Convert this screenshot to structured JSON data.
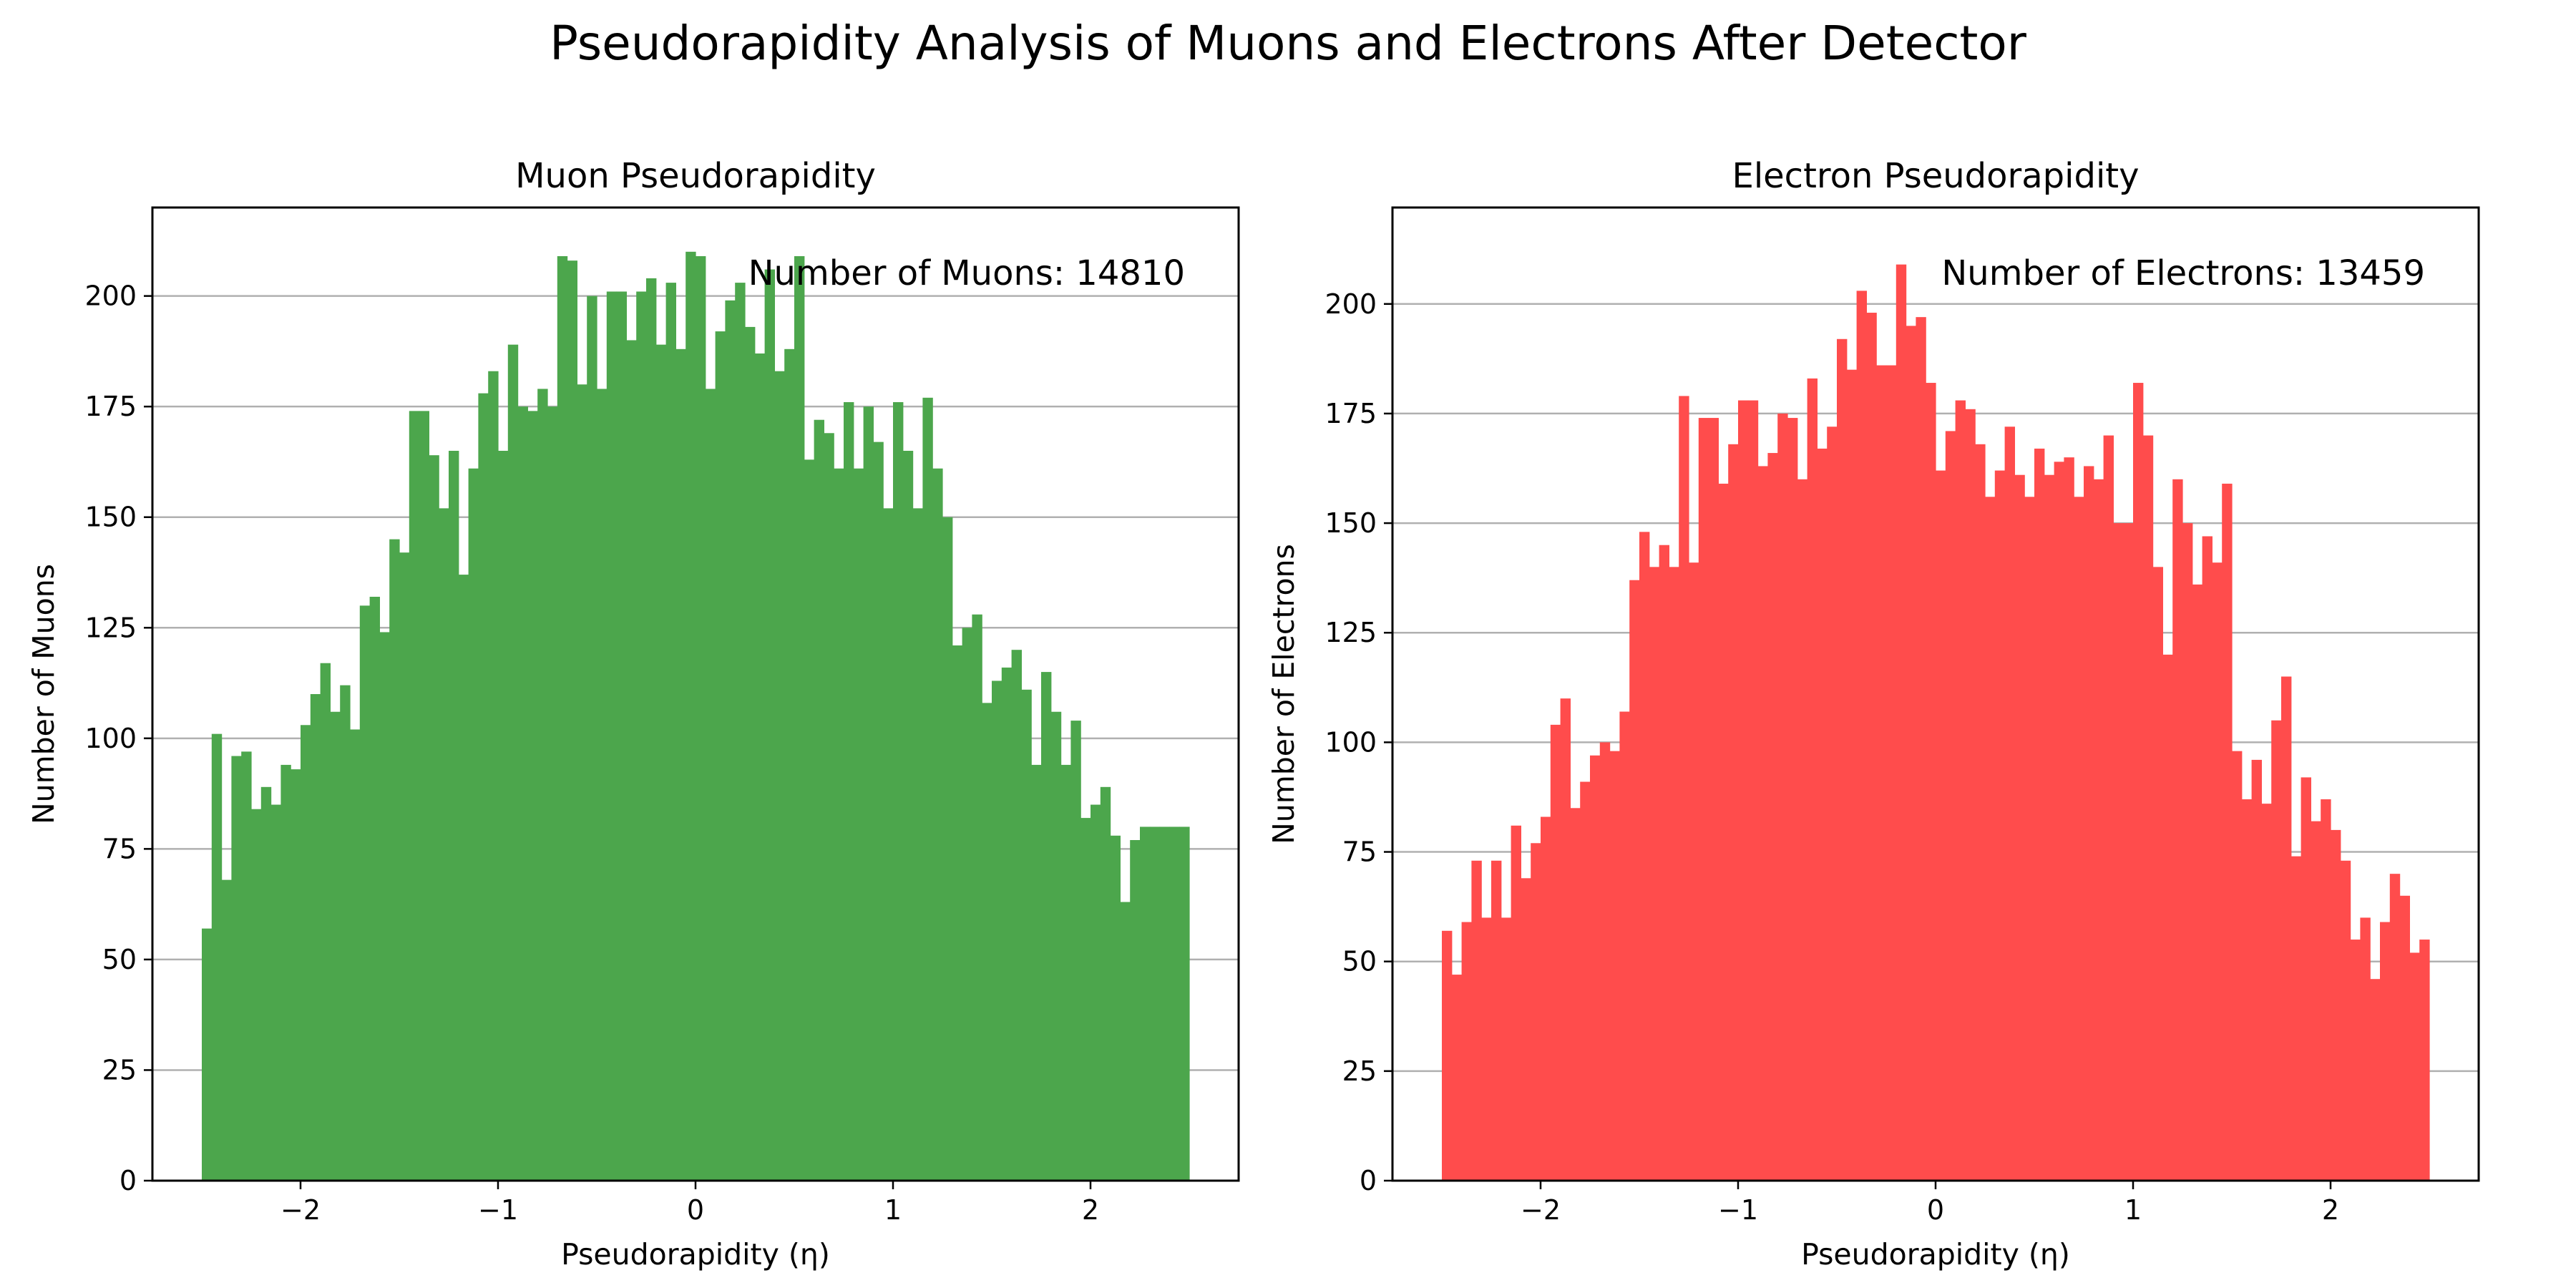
{
  "figure": {
    "suptitle": "Pseudorapidity Analysis of Muons and Electrons After Detector"
  },
  "chart_data": [
    {
      "type": "bar",
      "title": "Muon Pseudorapidity",
      "xlabel": "Pseudorapidity (η)",
      "ylabel": "Number of Muons",
      "annotation": "Number of Muons: 14810",
      "color": "#4ca64c",
      "xlim": [
        -2.75,
        2.75
      ],
      "ylim": [
        0,
        220
      ],
      "xticks": [
        -2,
        -1,
        0,
        1,
        2
      ],
      "xtick_labels": [
        "−2",
        "−1",
        "0",
        "1",
        "2"
      ],
      "yticks": [
        0,
        25,
        50,
        75,
        100,
        125,
        150,
        175,
        200
      ],
      "yticks_labels": [
        "0",
        "25",
        "50",
        "75",
        "100",
        "125",
        "150",
        "175",
        "200"
      ],
      "grid": "y",
      "bin_range": [
        -2.5,
        2.5
      ],
      "bins": 100,
      "values": [
        57,
        101,
        68,
        96,
        97,
        84,
        89,
        85,
        94,
        93,
        103,
        110,
        117,
        106,
        112,
        102,
        130,
        132,
        124,
        145,
        142,
        174,
        174,
        164,
        152,
        165,
        137,
        161,
        178,
        183,
        165,
        189,
        175,
        174,
        179,
        175,
        209,
        208,
        180,
        200,
        179,
        201,
        201,
        190,
        201,
        204,
        189,
        203,
        188,
        210,
        209,
        179,
        192,
        199,
        203,
        193,
        187,
        206,
        183,
        188,
        209,
        163,
        172,
        169,
        161,
        176,
        161,
        175,
        167,
        152,
        176,
        165,
        152,
        177,
        161,
        150,
        121,
        125,
        128,
        108,
        113,
        116,
        120,
        111,
        94,
        115,
        106,
        94,
        104,
        82,
        85,
        89,
        78,
        63,
        77,
        80,
        80,
        80,
        80,
        80
      ]
    },
    {
      "type": "bar",
      "title": "Electron Pseudorapidity",
      "xlabel": "Pseudorapidity (η)",
      "ylabel": "Number of Electrons",
      "annotation": "Number of Electrons: 13459",
      "color": "#ff4c4c",
      "xlim": [
        -2.75,
        2.75
      ],
      "ylim": [
        0,
        222
      ],
      "xticks": [
        -2,
        -1,
        0,
        1,
        2
      ],
      "xtick_labels": [
        "−2",
        "−1",
        "0",
        "1",
        "2"
      ],
      "yticks": [
        0,
        25,
        50,
        75,
        100,
        125,
        150,
        175,
        200
      ],
      "yticks_labels": [
        "0",
        "25",
        "50",
        "75",
        "100",
        "125",
        "150",
        "175",
        "200"
      ],
      "grid": "y",
      "bin_range": [
        -2.5,
        2.5
      ],
      "bins": 100,
      "values": [
        57,
        47,
        59,
        73,
        60,
        73,
        60,
        81,
        69,
        77,
        83,
        104,
        110,
        85,
        91,
        97,
        100,
        98,
        107,
        137,
        148,
        140,
        145,
        140,
        179,
        141,
        174,
        174,
        159,
        168,
        178,
        178,
        163,
        166,
        175,
        174,
        160,
        183,
        167,
        172,
        192,
        185,
        203,
        198,
        186,
        186,
        209,
        195,
        197,
        182,
        162,
        171,
        178,
        176,
        168,
        156,
        162,
        172,
        161,
        156,
        167,
        161,
        164,
        165,
        156,
        163,
        160,
        170,
        150,
        150,
        182,
        170,
        140,
        120,
        160,
        150,
        136,
        147,
        141,
        159,
        98,
        87,
        96,
        86,
        105,
        115,
        74,
        92,
        82,
        87,
        80,
        73,
        55,
        60,
        46,
        59,
        70,
        65,
        52,
        55
      ]
    }
  ]
}
